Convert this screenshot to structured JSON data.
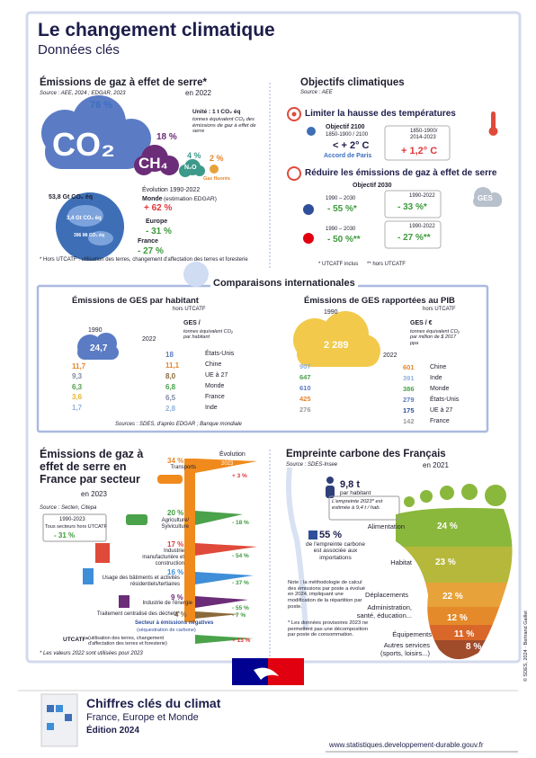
{
  "header": {
    "title": "Le changement climatique",
    "subtitle": "Données clés"
  },
  "emissions": {
    "title": "Émissions de gaz à effet de serre*",
    "year": "en 2022",
    "source": "Source : AEE, 2024 ; EDGAR, 2023",
    "gases": [
      {
        "share": "76 %",
        "name": "CO₂"
      },
      {
        "share": "18 %",
        "name": "CH₄"
      },
      {
        "share": "4 %",
        "name": "N₂O"
      },
      {
        "share": "2 %",
        "name": "Gaz fluorés"
      }
    ],
    "unit": "Unité : 1 t CO₂ éq",
    "unit_note": "tonnes équivalent CO₂ des émissions de gaz à effet de serre",
    "evolution_title": "Évolution 1990-2022",
    "zones": [
      {
        "total": "53,8 Gt CO₂ éq",
        "name": "Monde",
        "note": "(estimation EDGAR)",
        "change": "+ 62 %"
      },
      {
        "total": "3,4 Gt CO₂ éq",
        "name": "Europe",
        "change": "- 31 %"
      },
      {
        "total": "396 Mt CO₂ éq",
        "name": "France",
        "change": "- 27 %"
      }
    ],
    "footnote": "* Hors UTCATF : utilisation des terres, changement d'affectation des terres et foresterie"
  },
  "objectives": {
    "title": "Objectifs climatiques",
    "source": "Source : AEE",
    "temperature": {
      "title": "Limiter la hausse des températures",
      "goal": "Objectif 2100",
      "period": "1850-1900 / 2100",
      "target": "< + 2° C",
      "agreement": "Accord de Paris",
      "observed_period": "1850-1900/ 2014-2023",
      "observed": "+ 1,2° C"
    },
    "reduction": {
      "title": "Réduire les émissions de gaz à effet de serre",
      "goal": "Objectif 2030",
      "rows": [
        {
          "period": "1990 – 2030",
          "target": "- 55 %*",
          "actual_period": "1990-2022",
          "actual": "- 33 %*"
        },
        {
          "period": "1990 – 2030",
          "target": "- 50 %**",
          "actual_period": "1990-2022",
          "actual": "- 27 %**"
        }
      ],
      "label": "GES"
    },
    "footnotes": [
      "* UTCATF inclus",
      "** hors UTCATF"
    ]
  },
  "comparisons": {
    "title": "Comparaisons internationales",
    "per_capita": {
      "title": "Émissions de GES par habitant",
      "subtitle": "hors UTCATF",
      "year_1990": "1990",
      "year_2022": "2022",
      "unit": "GES /",
      "unit_note": "tonnes équivalent CO₂ par habitant",
      "values_1990": [
        "24,7",
        "11,7",
        "9,3",
        "6,3",
        "3,6",
        "1,7"
      ],
      "colors_1990": [
        "#5b7cc4",
        "#e6852a",
        "#7f8aa3",
        "#4aa24a",
        "#e6b42a",
        "#8fb3e0"
      ],
      "values_2022": [
        "18",
        "11,1",
        "8,0",
        "6,8",
        "6,5",
        "2,8"
      ],
      "colors_2022": [
        "#5b7cc4",
        "#e6852a",
        "#8a6a3a",
        "#4aa24a",
        "#7f8aa3",
        "#8fb3e0"
      ],
      "countries": [
        "États-Unis",
        "Chine",
        "UE à 27",
        "Monde",
        "France",
        "Inde"
      ]
    },
    "gdp": {
      "title": "Émissions de GES rapportées au PIB",
      "subtitle": "hors UTCATF",
      "year_1990": "1990",
      "year_2022": "2022",
      "unit": "GES / €",
      "unit_note": "tonnes équivalent CO₂ par million de $ 2017 ppa",
      "values_1990": [
        "2 289",
        "907",
        "647",
        "610",
        "425",
        "276"
      ],
      "colors_1990": [
        "#f2c94a",
        "#8fb3e0",
        "#4aa24a",
        "#5b7cc4",
        "#e6852a",
        "#9a9a9a"
      ],
      "values_2022": [
        "601",
        "391",
        "386",
        "279",
        "175",
        "142"
      ],
      "colors_2022": [
        "#e6852a",
        "#8fb3e0",
        "#4aa24a",
        "#5b7cc4",
        "#2f4f9a",
        "#9a9a9a"
      ],
      "countries": [
        "Chine",
        "Inde",
        "Monde",
        "États-Unis",
        "UE à 27",
        "France"
      ]
    },
    "sources": "Sources : SDES, d'après EDGAR ; Banque mondiale"
  },
  "sectors": {
    "title": "Émissions de gaz à effet de serre en France par secteur",
    "year": "en 2023",
    "source": "Source : Secten, Citepa",
    "legend_period": "1990-2023",
    "legend_scope": "Tous secteurs hors UTCATF",
    "legend_change": "- 31 %",
    "evolution": "Évolution",
    "evolution_period": "2023",
    "items": [
      {
        "share": "34 %",
        "name": "Transports",
        "change": "+ 3 %"
      },
      {
        "share": "20 %",
        "name": "Agriculture/ Sylviculture",
        "change": "- 18 %"
      },
      {
        "share": "17 %",
        "name": "Industrie manufacturière et construction",
        "change": "- 54 %"
      },
      {
        "share": "16 %",
        "name": "Usage des bâtiments et activités résidentiels/tertiaires",
        "change": "- 37 %"
      },
      {
        "share": "9 %",
        "name": "Industrie de l'énergie",
        "change": "- 55 %"
      },
      {
        "share": "4 %",
        "name": "Traitement centralisé des déchets*",
        "change": "- 7 %"
      }
    ],
    "negative_title": "Secteur à émissions négatives",
    "negative_note": "(séquestration de carbone)",
    "utcatf_name": "UTCATF*",
    "utcatf_note": "(utilisation des terres, changement d'affectation des terres et foresterie)",
    "utcatf_change": "+ 13 %",
    "footnote": "* Les valeurs 2022 sont utilisées pour 2023"
  },
  "footprint": {
    "title": "Empreinte carbone des Français",
    "year": "en 2021",
    "source": "Source : SDES-Insee",
    "per_capita": "9,8 t",
    "per_capita_label": "par habitant",
    "estimate": "L'empreinte 2023* est estimée à 9,4 t / hab.",
    "imports_share": "55 %",
    "imports_text": "de l'empreinte carbone est associée aux importations",
    "note": "Note : la méthodologie de calcul des émissions par poste a évolué en 2024, impliquant une modification de la répartition par poste.",
    "footnote": "* Les données provisoires 2023 ne permettent pas une décomposition par poste de consommation.",
    "items": [
      {
        "name": "Alimentation",
        "share": "24 %"
      },
      {
        "name": "Habitat",
        "share": "23 %"
      },
      {
        "name": "Déplacements",
        "share": "22 %"
      },
      {
        "name": "Administration, santé, éducation...",
        "share": "12 %"
      },
      {
        "name": "Équipements",
        "share": "11 %"
      },
      {
        "name": "Autres services (sports, loisirs...)",
        "share": "8 %"
      }
    ]
  },
  "footer": {
    "title": "Chiffres clés du climat",
    "subtitle": "France, Europe et Monde",
    "edition": "Édition 2024",
    "url": "www.statistiques.developpement-durable.gouv.fr",
    "credit": "© SDES, 2024 · Bertrand Gaillet"
  }
}
